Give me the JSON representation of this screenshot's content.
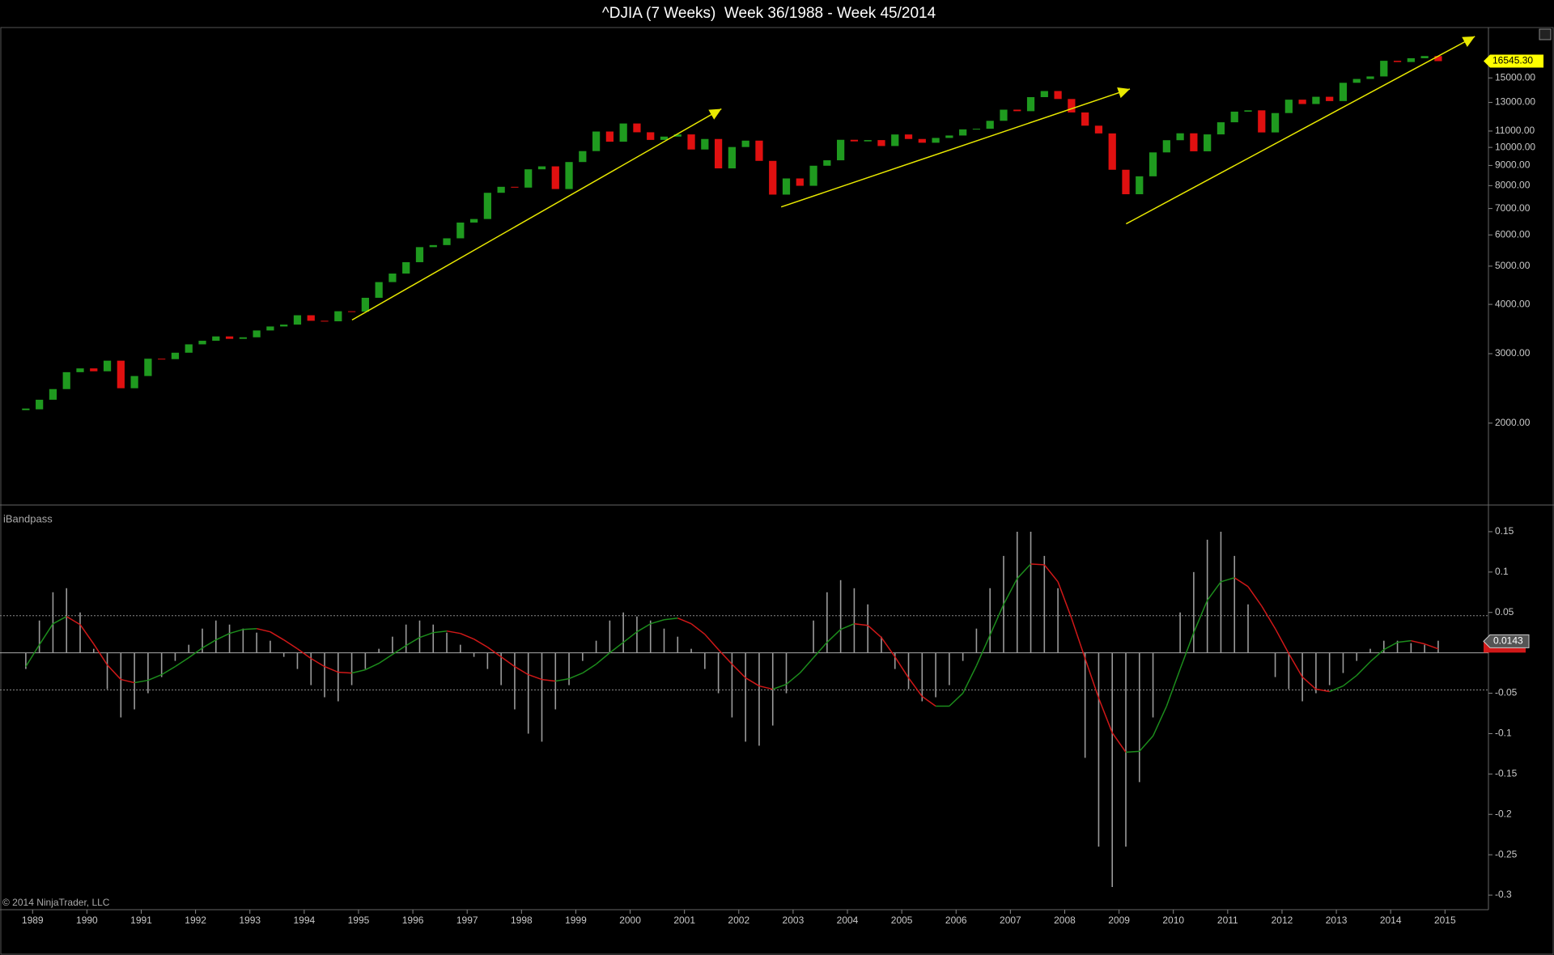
{
  "chart_data": {
    "type": "candlestick",
    "title": "^DJIA (7 Weeks)  Week 36/1988 - Week 45/2014",
    "source": "© 2014 NinjaTrader, LLC",
    "log_y": true,
    "up_color": "#1f9a1f",
    "down_color": "#e01010",
    "x": [
      1988.875,
      1989.125,
      1989.375,
      1989.625,
      1989.875,
      1990.125,
      1990.375,
      1990.625,
      1990.875,
      1991.125,
      1991.375,
      1991.625,
      1991.875,
      1992.125,
      1992.375,
      1992.625,
      1992.875,
      1993.125,
      1993.375,
      1993.625,
      1993.875,
      1994.125,
      1994.375,
      1994.625,
      1994.875,
      1995.125,
      1995.375,
      1995.625,
      1995.875,
      1996.125,
      1996.375,
      1996.625,
      1996.875,
      1997.125,
      1997.375,
      1997.625,
      1997.875,
      1998.125,
      1998.375,
      1998.625,
      1998.875,
      1999.125,
      1999.375,
      1999.625,
      1999.875,
      2000.125,
      2000.375,
      2000.625,
      2000.875,
      2001.125,
      2001.375,
      2001.625,
      2001.875,
      2002.125,
      2002.375,
      2002.625,
      2002.875,
      2003.125,
      2003.375,
      2003.625,
      2003.875,
      2004.125,
      2004.375,
      2004.625,
      2004.875,
      2005.125,
      2005.375,
      2005.625,
      2005.875,
      2006.125,
      2006.375,
      2006.625,
      2006.875,
      2007.125,
      2007.375,
      2007.625,
      2007.875,
      2008.125,
      2008.375,
      2008.625,
      2008.875,
      2009.125,
      2009.375,
      2009.625,
      2009.875,
      2010.125,
      2010.375,
      2010.625,
      2010.875,
      2011.125,
      2011.375,
      2011.625,
      2011.875,
      2012.125,
      2012.375,
      2012.625,
      2012.875,
      2013.125,
      2013.375,
      2013.625,
      2013.875,
      2014.125,
      2014.375,
      2014.625,
      2014.875
    ],
    "close": [
      2168,
      2293,
      2440,
      2693,
      2753,
      2707,
      2880,
      2452,
      2633,
      2913,
      2906,
      3017,
      3168,
      3235,
      3318,
      3271,
      3301,
      3435,
      3516,
      3555,
      3754,
      3635,
      3624,
      3843,
      3834,
      4157,
      4556,
      4789,
      5117,
      5587,
      5654,
      5882,
      6448,
      6583,
      7672,
      7945,
      7908,
      8799,
      8952,
      7842,
      9181,
      9786,
      10970,
      10337,
      11497,
      10922,
      10447,
      10650,
      10787,
      9878,
      10502,
      8847,
      10021,
      10403,
      9243,
      7591,
      8342,
      7992,
      8985,
      9275,
      10453,
      10357,
      10435,
      10080,
      10783,
      10503,
      10275,
      10568,
      10718,
      11109,
      11150,
      11679,
      12463,
      12354,
      13408,
      13895,
      13264,
      12262,
      11350,
      10850,
      8776,
      7608,
      8447,
      9712,
      10428,
      10857,
      9774,
      10788,
      11578,
      12320,
      12414,
      10913,
      12218,
      13212,
      12880,
      13437,
      13104,
      14579,
      14910,
      15130,
      16577,
      16458,
      16827,
      17043,
      16545.3
    ],
    "price_label": {
      "value": 16545.3,
      "label": "16545.30"
    },
    "xlim": [
      1988.4,
      2015.8
    ],
    "xticks": [
      1989,
      1990,
      1991,
      1992,
      1993,
      1994,
      1995,
      1996,
      1997,
      1998,
      1999,
      2000,
      2001,
      2002,
      2003,
      2004,
      2005,
      2006,
      2007,
      2008,
      2009,
      2010,
      2011,
      2012,
      2013,
      2014,
      2015
    ],
    "ylim": [
      1252,
      20130
    ],
    "yticks": [
      {
        "value": 2000,
        "label": "2000.00"
      },
      {
        "value": 3000,
        "label": "3000.00"
      },
      {
        "value": 4000,
        "label": "4000.00"
      },
      {
        "value": 5000,
        "label": "5000.00"
      },
      {
        "value": 6000,
        "label": "6000.00"
      },
      {
        "value": 7000,
        "label": "7000.00"
      },
      {
        "value": 8000,
        "label": "8000.00"
      },
      {
        "value": 9000,
        "label": "9000.00"
      },
      {
        "value": 10000,
        "label": "10000.00"
      },
      {
        "value": 11000,
        "label": "11000.00"
      },
      {
        "value": 13000,
        "label": "13000.00"
      },
      {
        "value": 15000,
        "label": "15000.00"
      }
    ],
    "trend_color": "#e8e800",
    "trend_lines": [
      {
        "x": [
          1994.88,
          2001.68
        ],
        "y": [
          3652,
          12520
        ],
        "arrow": true
      },
      {
        "x": [
          2002.78,
          2009.2
        ],
        "y": [
          7064,
          14060
        ],
        "arrow": true
      },
      {
        "x": [
          2009.13,
          2015.55
        ],
        "y": [
          6400,
          19110
        ],
        "arrow": true
      }
    ],
    "indicator": {
      "type": "bar",
      "title": "iBandpass",
      "bar_color": "#9a9a9a",
      "rise_color": "#1c8c1c",
      "fall_color": "#d01818",
      "values": [
        -0.02,
        0.04,
        0.075,
        0.08,
        0.05,
        0.005,
        -0.045,
        -0.08,
        -0.07,
        -0.05,
        -0.03,
        -0.01,
        0.01,
        0.03,
        0.04,
        0.035,
        0.03,
        0.025,
        0.015,
        -0.005,
        -0.02,
        -0.04,
        -0.055,
        -0.06,
        -0.04,
        -0.02,
        0.005,
        0.02,
        0.035,
        0.04,
        0.035,
        0.025,
        0.01,
        -0.005,
        -0.02,
        -0.04,
        -0.07,
        -0.1,
        -0.11,
        -0.07,
        -0.04,
        -0.01,
        0.015,
        0.04,
        0.05,
        0.045,
        0.04,
        0.03,
        0.02,
        0.005,
        -0.02,
        -0.05,
        -0.08,
        -0.11,
        -0.115,
        -0.09,
        -0.05,
        0,
        0.04,
        0.075,
        0.09,
        0.08,
        0.06,
        0.02,
        -0.02,
        -0.045,
        -0.06,
        -0.055,
        -0.04,
        -0.01,
        0.03,
        0.08,
        0.12,
        0.15,
        0.15,
        0.12,
        0.08,
        0,
        -0.13,
        -0.24,
        -0.29,
        -0.24,
        -0.16,
        -0.08,
        0,
        0.05,
        0.1,
        0.14,
        0.15,
        0.12,
        0.06,
        0,
        -0.03,
        -0.045,
        -0.06,
        -0.05,
        -0.04,
        -0.025,
        -0.01,
        0.005,
        0.015,
        0.015,
        0.012,
        0.01,
        0.015
      ],
      "line_values": [
        -0.017,
        0.01,
        0.036,
        0.045,
        0.035,
        0.011,
        -0.015,
        -0.033,
        -0.037,
        -0.034,
        -0.027,
        -0.017,
        -0.006,
        0.006,
        0.016,
        0.024,
        0.029,
        0.03,
        0.026,
        0.016,
        0.005,
        -0.007,
        -0.017,
        -0.024,
        -0.025,
        -0.021,
        -0.013,
        -0.002,
        0.009,
        0.019,
        0.025,
        0.027,
        0.024,
        0.017,
        0.007,
        -0.005,
        -0.017,
        -0.027,
        -0.033,
        -0.035,
        -0.032,
        -0.025,
        -0.014,
        0,
        0.013,
        0.026,
        0.036,
        0.041,
        0.043,
        0.036,
        0.023,
        0.004,
        -0.014,
        -0.031,
        -0.041,
        -0.045,
        -0.039,
        -0.025,
        -0.006,
        0.013,
        0.029,
        0.036,
        0.034,
        0.019,
        -0.005,
        -0.031,
        -0.054,
        -0.066,
        -0.066,
        -0.05,
        -0.016,
        0.022,
        0.06,
        0.092,
        0.11,
        0.109,
        0.088,
        0.043,
        -0.007,
        -0.056,
        -0.099,
        -0.123,
        -0.122,
        -0.103,
        -0.066,
        -0.02,
        0.025,
        0.065,
        0.088,
        0.093,
        0.082,
        0.058,
        0.03,
        -0.001,
        -0.03,
        -0.045,
        -0.048,
        -0.041,
        -0.028,
        -0.011,
        0.004,
        0.013,
        0.015,
        0.011,
        0.005
      ],
      "last_label": 0.0143,
      "bands": [
        0.046,
        -0.046
      ],
      "ylim": [
        -0.318,
        0.18
      ],
      "yticks": [
        0.15,
        0.1,
        0.05,
        -0.05,
        -0.1,
        -0.15,
        -0.2,
        -0.25,
        -0.3
      ]
    }
  }
}
